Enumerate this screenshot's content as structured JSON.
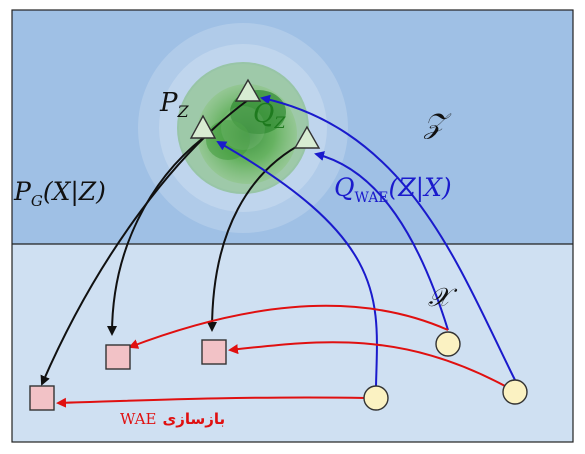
{
  "colors": {
    "latent_bg": "#9fc0e5",
    "data_bg": "#cfe0f2",
    "border": "#222222",
    "generator_arrow": "#111111",
    "encoder_arrow": "#1a1acc",
    "reconstruction_arrow": "#e01010",
    "sample_square": "#f2c2c6",
    "data_point": "#fbf2c2",
    "latent_point": "#d8ecd2",
    "gaussian_green": "#3f9a3a"
  },
  "labels": {
    "p_z": {
      "main": "P",
      "sub": "Z"
    },
    "q_z": {
      "main": "Q",
      "sub": "Z"
    },
    "latent_space": "𝒵",
    "data_space": "𝒳",
    "generator": {
      "main": "P",
      "sub": "G",
      "args": "(X|Z)"
    },
    "encoder": {
      "main": "Q",
      "sub": "WAE",
      "args": "(Z|X)"
    },
    "reconstruction": {
      "rtl_text": "بازسازی",
      "ltr_text": "WAE"
    }
  }
}
